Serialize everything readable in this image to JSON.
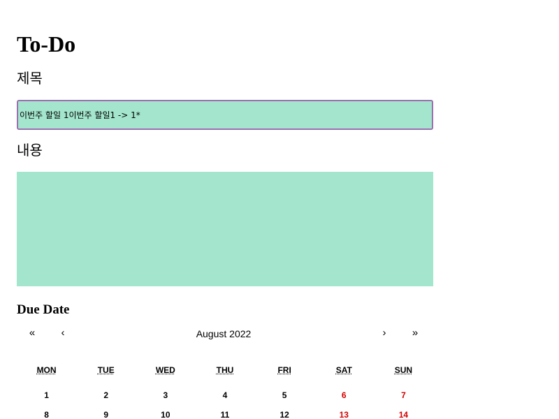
{
  "page": {
    "title": "To-Do"
  },
  "form": {
    "title_label": "제목",
    "title_value": "이번주 할일 1이번주 할일1 -> 1*",
    "content_label": "내용",
    "content_value": "",
    "due_label": "Due Date"
  },
  "calendar": {
    "nav": {
      "prev_year": "«",
      "prev_month": "‹",
      "month": "August 2022",
      "next_month": "›",
      "next_year": "»"
    },
    "weekdays": [
      "MON",
      "TUE",
      "WED",
      "THU",
      "FRI",
      "SAT",
      "SUN"
    ],
    "weeks": [
      [
        "1",
        "2",
        "3",
        "4",
        "5",
        "6",
        "7"
      ],
      [
        "8",
        "9",
        "10",
        "11",
        "12",
        "13",
        "14"
      ]
    ],
    "weekend_color": "#d10000"
  },
  "colors": {
    "field_bg": "#a3e5cd",
    "focus_border": "#9b6fb0"
  }
}
